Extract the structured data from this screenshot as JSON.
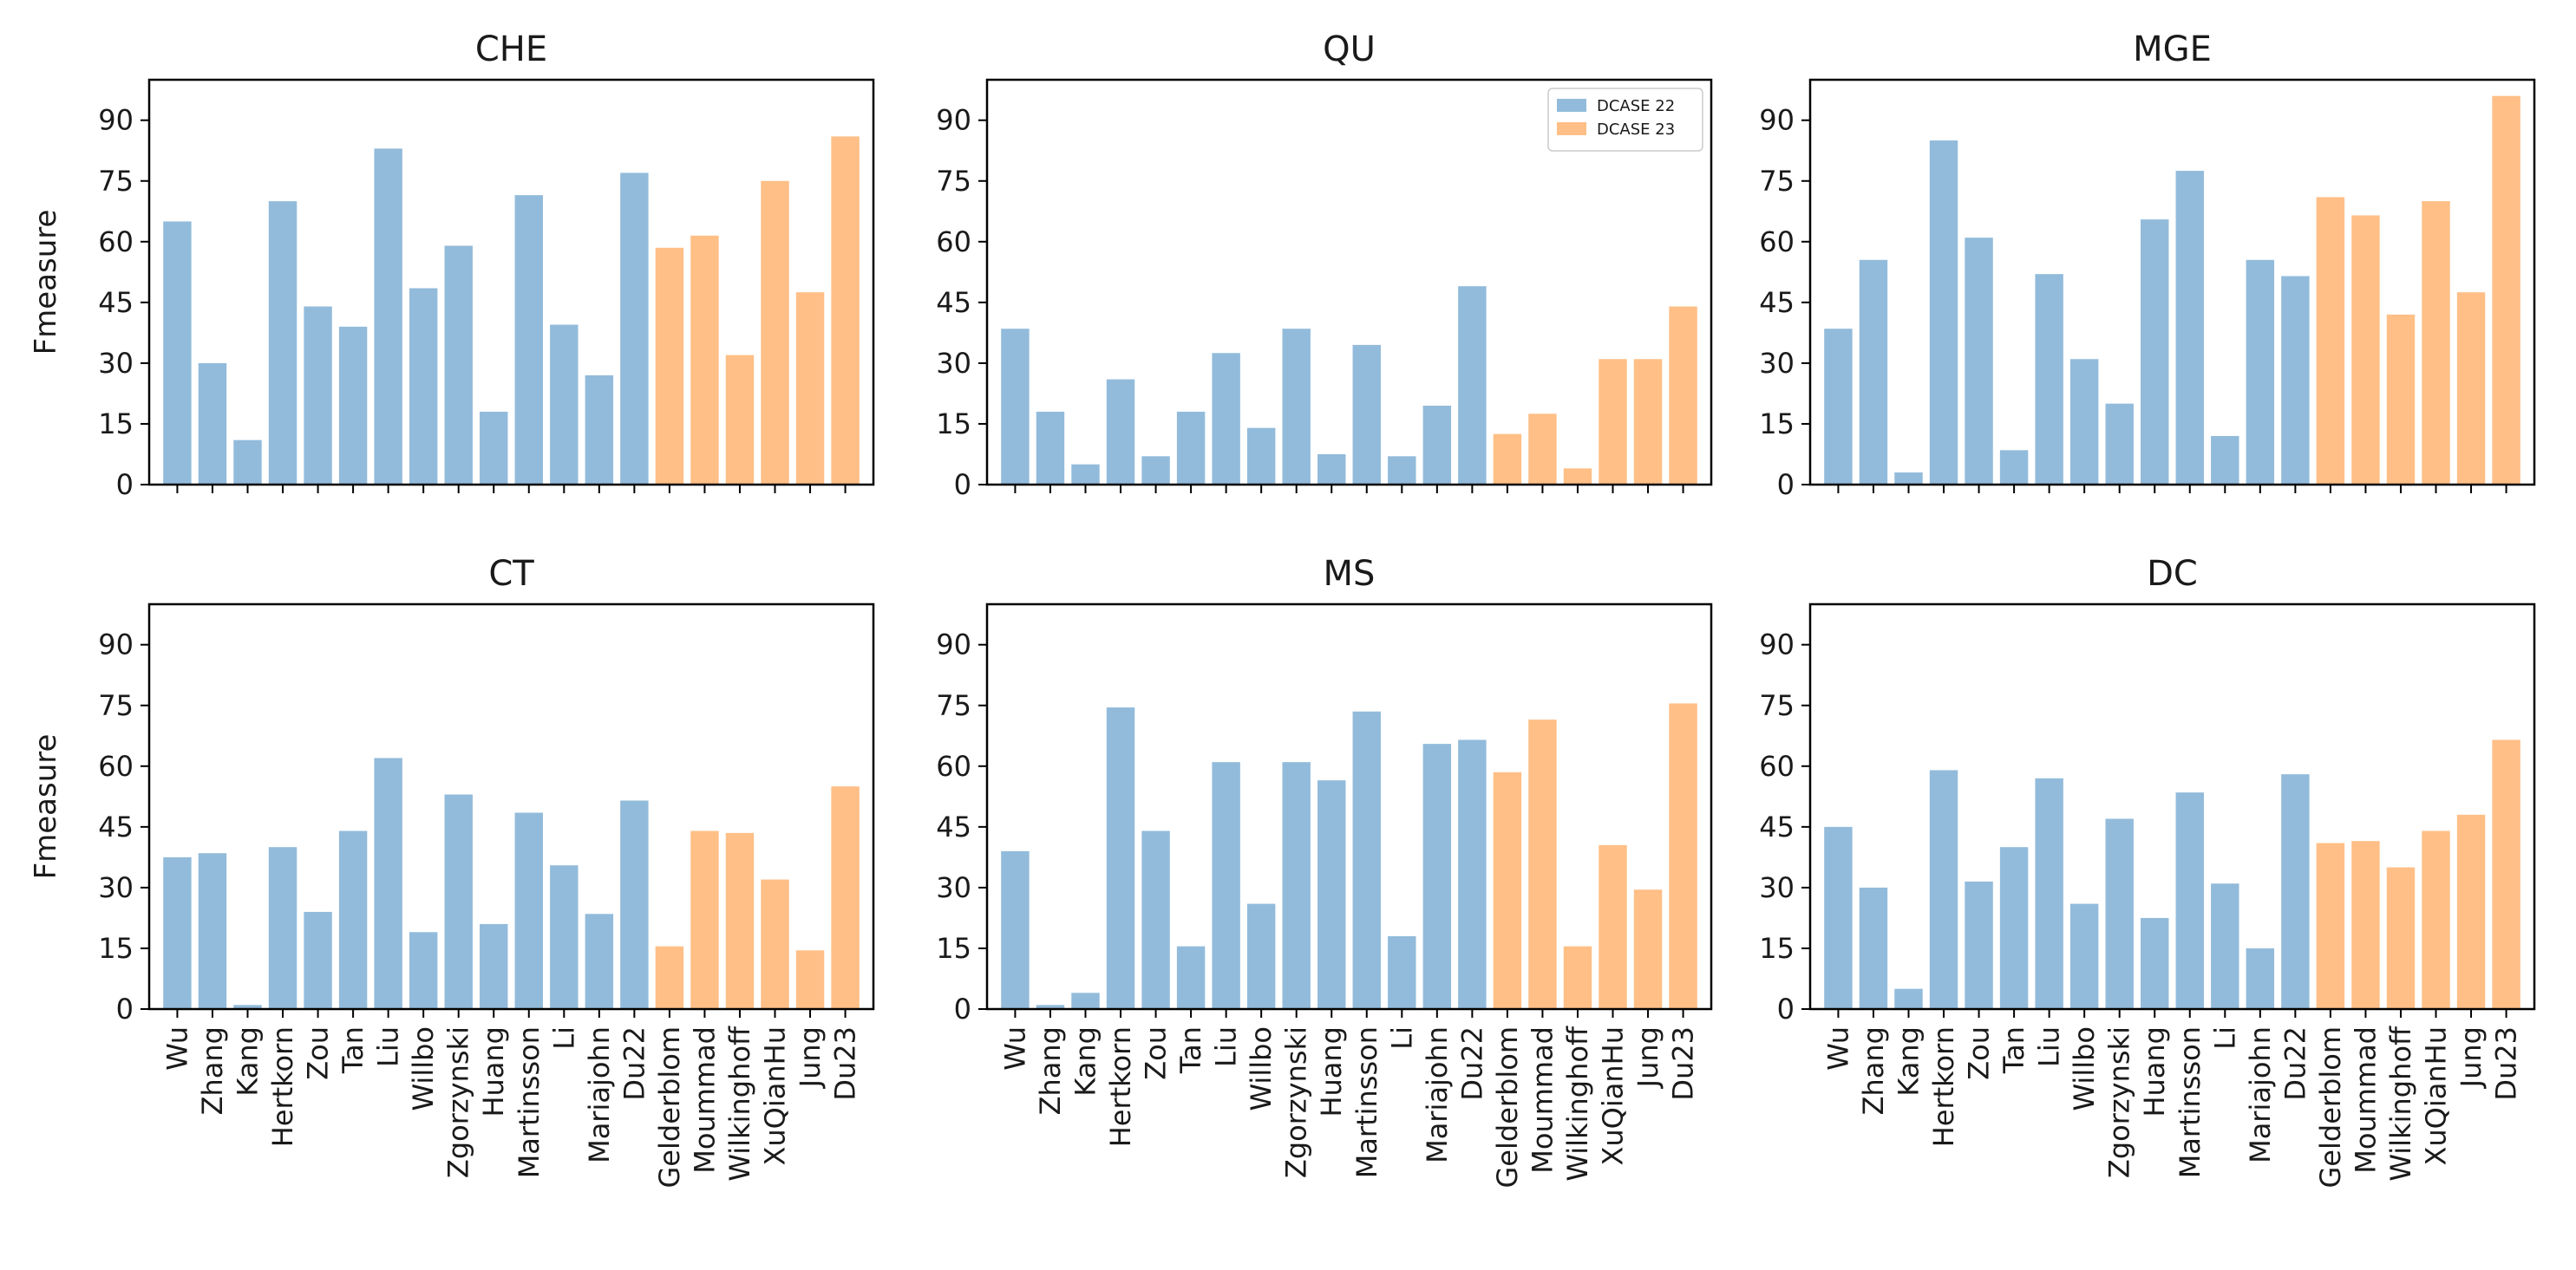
{
  "chart_data": {
    "type": "bar",
    "layout": "2x3 grid of subplots",
    "categories": [
      "Wu",
      "Zhang",
      "Kang",
      "Hertkorn",
      "Zou",
      "Tan",
      "Liu",
      "Willbo",
      "Zgorzynski",
      "Huang",
      "Martinsson",
      "Li",
      "Mariajohn",
      "Du22",
      "Gelderblom",
      "Moummad",
      "Wilkinghoff",
      "XuQianHu",
      "Jung",
      "Du23"
    ],
    "series_groups": [
      {
        "name": "DCASE 22",
        "color": "#92bbdb",
        "count": 14
      },
      {
        "name": "DCASE 23",
        "color": "#ffbf86",
        "count": 6
      }
    ],
    "ylim": [
      0,
      100
    ],
    "yticks": [
      "0",
      "15",
      "30",
      "45",
      "60",
      "75",
      "90"
    ],
    "ylabel": "Fmeasure",
    "legend": {
      "location": "upper-right",
      "subplot": "QU"
    },
    "subplots": [
      {
        "title": "CHE",
        "values": [
          65,
          30,
          11,
          70,
          44,
          39,
          83,
          48.5,
          59,
          18,
          71.5,
          39.5,
          27,
          77,
          58.5,
          61.5,
          32,
          75,
          47.5,
          86
        ]
      },
      {
        "title": "QU",
        "values": [
          38.5,
          18,
          5,
          26,
          7,
          18,
          32.5,
          14,
          38.5,
          7.5,
          34.5,
          7,
          19.5,
          49,
          12.5,
          17.5,
          4,
          31,
          31,
          44
        ]
      },
      {
        "title": "MGE",
        "values": [
          38.5,
          55.5,
          3,
          85,
          61,
          8.5,
          52,
          31,
          20,
          65.5,
          77.5,
          12,
          55.5,
          51.5,
          71,
          66.5,
          42,
          70,
          47.5,
          96
        ]
      },
      {
        "title": "CT",
        "values": [
          37.5,
          38.5,
          1,
          40,
          24,
          44,
          62,
          19,
          53,
          21,
          48.5,
          35.5,
          23.5,
          51.5,
          15.5,
          44,
          43.5,
          32,
          14.5,
          55
        ]
      },
      {
        "title": "MS",
        "values": [
          39,
          1,
          4,
          74.5,
          44,
          15.5,
          61,
          26,
          61,
          56.5,
          73.5,
          18,
          65.5,
          66.5,
          58.5,
          71.5,
          15.5,
          40.5,
          29.5,
          75.5
        ]
      },
      {
        "title": "DC",
        "values": [
          45,
          30,
          5,
          59,
          31.5,
          40,
          57,
          26,
          47,
          22.5,
          53.5,
          31,
          15,
          58,
          41,
          41.5,
          35,
          44,
          48,
          66.5
        ]
      }
    ]
  }
}
